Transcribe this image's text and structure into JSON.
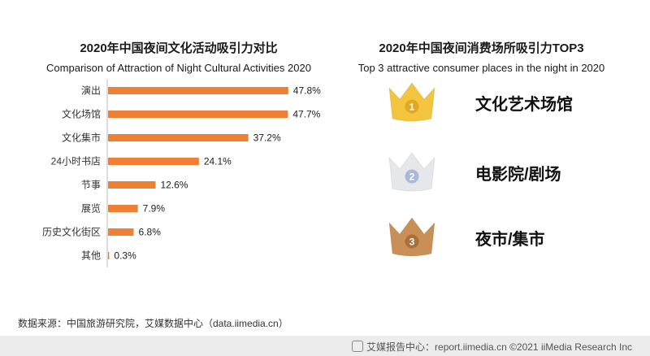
{
  "left": {
    "title_cn": "2020年中国夜间文化活动吸引力对比",
    "title_en": "Comparison of Attraction of Night Cultural Activities 2020"
  },
  "right": {
    "title_cn": "2020年中国夜间消费场所吸引力TOP3",
    "title_en": "Top 3 attractive consumer places in the night in 2020",
    "ranks": [
      {
        "rank": "1",
        "label": "文化艺术场馆",
        "color": "#F3C43E",
        "badge": "#E3A821",
        "icon": "gold-crown-icon"
      },
      {
        "rank": "2",
        "label": "电影院/剧场",
        "color": "#E6E7EA",
        "badge": "#A9B9D8",
        "icon": "silver-crown-icon"
      },
      {
        "rank": "3",
        "label": "夜市/集市",
        "color": "#C98F56",
        "badge": "#A86F3A",
        "icon": "bronze-crown-icon"
      }
    ]
  },
  "chart_data": {
    "type": "bar",
    "orientation": "horizontal",
    "categories": [
      "演出",
      "文化场馆",
      "文化集市",
      "24小时书店",
      "节事",
      "展览",
      "历史文化街区",
      "其他"
    ],
    "values": [
      47.8,
      47.7,
      37.2,
      24.1,
      12.6,
      7.9,
      6.8,
      0.3
    ],
    "value_labels": [
      "47.8%",
      "47.7%",
      "37.2%",
      "24.1%",
      "12.6%",
      "7.9%",
      "6.8%",
      "0.3%"
    ],
    "title": "2020年中国夜间文化活动吸引力对比",
    "subtitle": "Comparison of Attraction of Night Cultural Activities 2020",
    "xlabel": "",
    "ylabel": "",
    "xlim": [
      0,
      50
    ],
    "bar_color": "#EE7F33",
    "grid": false
  },
  "footer": {
    "source": "数据来源：中国旅游研究院，艾媒数据中心（data.iimedia.cn）",
    "right_text": "艾媒报告中心：report.iimedia.cn ©2021 iiMedia Research Inc"
  }
}
